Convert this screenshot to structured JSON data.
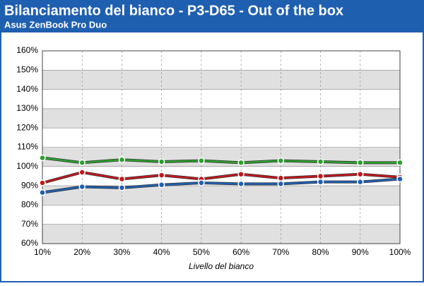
{
  "chart_data": {
    "type": "line",
    "title": "Bilanciamento del bianco - P3-D65 - Out of the box",
    "subtitle": "Asus ZenBook Pro Duo",
    "x_label": "Livello del bianco",
    "categories": [
      "10%",
      "20%",
      "30%",
      "40%",
      "50%",
      "60%",
      "70%",
      "80%",
      "90%",
      "100%"
    ],
    "series": [
      {
        "color": "#2ca02c",
        "values": [
          104.5,
          102,
          103.5,
          102.5,
          103,
          102,
          103,
          102.5,
          102,
          102
        ]
      },
      {
        "color": "#c0181e",
        "values": [
          91.5,
          97,
          93.5,
          95.5,
          93.5,
          96,
          94,
          95,
          96,
          94.5
        ]
      },
      {
        "color": "#2060b0",
        "values": [
          86.5,
          89.5,
          89,
          90.5,
          91.5,
          91,
          91,
          92,
          92,
          93.5
        ]
      }
    ],
    "ylim": [
      60,
      160
    ],
    "yticks": [
      {
        "value": 60,
        "label": "60%"
      },
      {
        "value": 70,
        "label": "70%"
      },
      {
        "value": 80,
        "label": "80%"
      },
      {
        "value": 90,
        "label": "90%"
      },
      {
        "value": 100,
        "label": "100%"
      },
      {
        "value": 110,
        "label": "110%"
      },
      {
        "value": 120,
        "label": "120%"
      },
      {
        "value": 130,
        "label": "130%"
      },
      {
        "value": 140,
        "label": "140%"
      },
      {
        "value": 150,
        "label": "150%"
      },
      {
        "value": 160,
        "label": "160%"
      }
    ],
    "grid": true
  }
}
